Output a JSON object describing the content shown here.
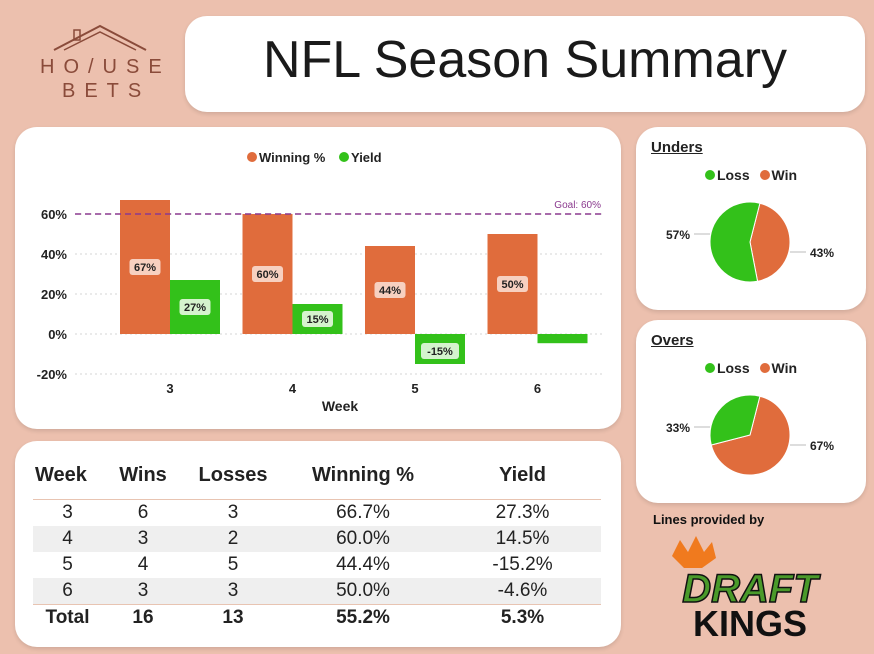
{
  "brand": {
    "line1": "HO/USE",
    "line2": "BETS",
    "colors": {
      "text": "#8a4b3a"
    }
  },
  "header": {
    "title": "NFL Season Summary"
  },
  "chart_data": {
    "type": "bar",
    "categories": [
      "3",
      "4",
      "5",
      "6"
    ],
    "series": [
      {
        "name": "Winning %",
        "color": "#e06c3c",
        "values": [
          67,
          60,
          44,
          50
        ],
        "labels": [
          "67%",
          "60%",
          "44%",
          "50%"
        ]
      },
      {
        "name": "Yield",
        "color": "#33c11a",
        "values": [
          27,
          15,
          -15,
          -4.6
        ],
        "labels": [
          "27%",
          "15%",
          "-15%",
          ""
        ]
      }
    ],
    "xlabel": "Week",
    "ylabel": "",
    "ylim": [
      -20,
      60
    ],
    "yticks": [
      -20,
      0,
      20,
      40,
      60
    ],
    "ytick_labels": [
      "-20%",
      "0%",
      "20%",
      "40%",
      "60%"
    ],
    "goal": {
      "value": 60,
      "label": "Goal: 60%",
      "color": "#8b3a8f"
    },
    "legend": "top",
    "grid": true
  },
  "pies": {
    "unders": {
      "title": "Unders",
      "legend": [
        "Loss",
        "Win"
      ],
      "slices": [
        {
          "name": "Loss",
          "value": 57,
          "label": "57%",
          "color": "#33c11a"
        },
        {
          "name": "Win",
          "value": 43,
          "label": "43%",
          "color": "#e06c3c"
        }
      ]
    },
    "overs": {
      "title": "Overs",
      "legend": [
        "Loss",
        "Win"
      ],
      "slices": [
        {
          "name": "Loss",
          "value": 33,
          "label": "33%",
          "color": "#33c11a"
        },
        {
          "name": "Win",
          "value": 67,
          "label": "67%",
          "color": "#e06c3c"
        }
      ]
    }
  },
  "table": {
    "headers": [
      "Week",
      "Wins",
      "Losses",
      "Winning %",
      "Yield"
    ],
    "rows": [
      [
        "3",
        "6",
        "3",
        "66.7%",
        "27.3%"
      ],
      [
        "4",
        "3",
        "2",
        "60.0%",
        "14.5%"
      ],
      [
        "5",
        "4",
        "5",
        "44.4%",
        "-15.2%"
      ],
      [
        "6",
        "3",
        "3",
        "50.0%",
        "-4.6%"
      ]
    ],
    "total": [
      "Total",
      "16",
      "13",
      "55.2%",
      "5.3%"
    ]
  },
  "sponsor": {
    "label": "Lines provided by",
    "name_top": "DRAFT",
    "name_bottom": "KINGS",
    "colors": {
      "green": "#4a9a2a",
      "orange": "#f07a1e",
      "dark": "#111111"
    }
  }
}
